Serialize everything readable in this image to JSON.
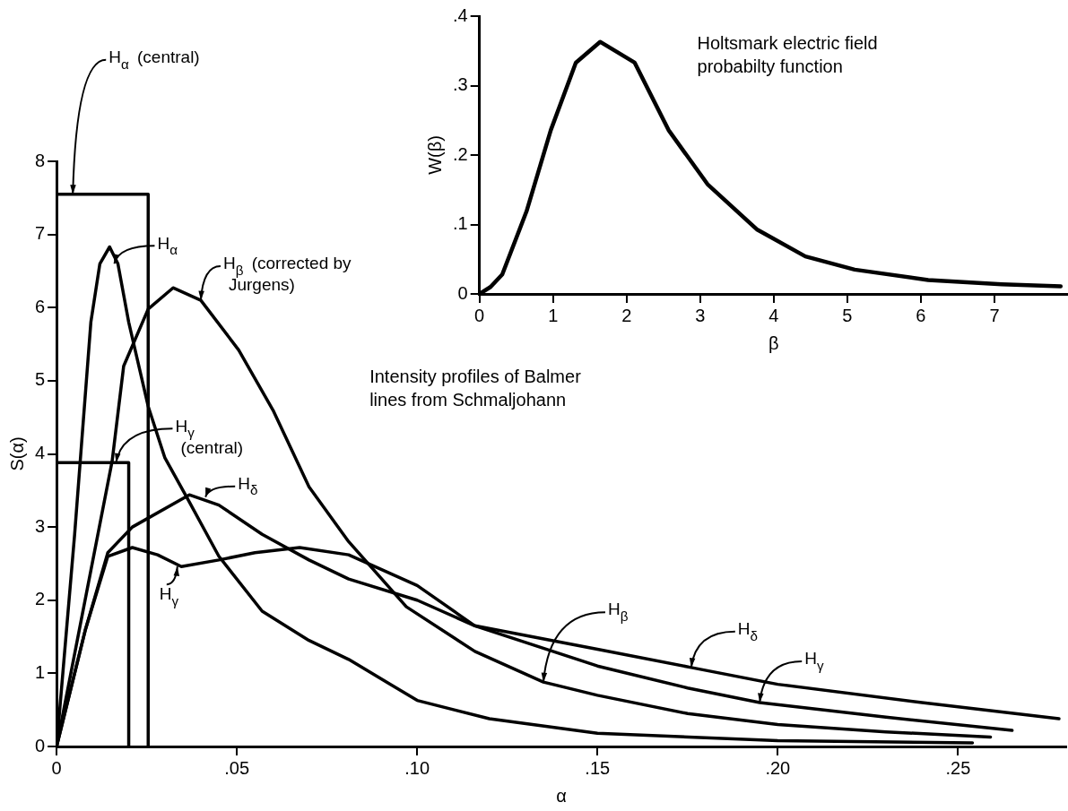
{
  "chart_data": [
    {
      "type": "line",
      "xlabel": "α",
      "ylabel": "S(α)",
      "xlim": [
        0,
        0.28
      ],
      "ylim": [
        0,
        8
      ],
      "xticks": [
        0,
        {
          "value": 0.05,
          "label": ".05"
        },
        {
          "value": 0.1,
          "label": ".10"
        },
        {
          "value": 0.15,
          "label": ".15"
        },
        {
          "value": 0.2,
          "label": ".20"
        },
        {
          "value": 0.25,
          "label": ".25"
        }
      ],
      "yticks": [
        0,
        1,
        2,
        3,
        4,
        5,
        6,
        7,
        8
      ],
      "marker": "none",
      "line_style": "solid",
      "series": [
        {
          "type": "line",
          "color": "#000000",
          "x": [
            0,
            0,
            0.0254,
            0.0254
          ],
          "values": [
            0,
            7.55,
            7.55,
            0
          ]
        },
        {
          "type": "line",
          "color": "#000000",
          "x": [
            0,
            0,
            0.02,
            0.02
          ],
          "values": [
            0,
            3.88,
            3.88,
            0
          ]
        },
        {
          "type": "line",
          "color": "#000000",
          "x": [
            0,
            0.005,
            0.0095,
            0.012,
            0.0147,
            0.017,
            0.02,
            0.0254,
            0.03,
            0.0363,
            0.045,
            0.057,
            0.07,
            0.081,
            0.1,
            0.12,
            0.15,
            0.2,
            0.254
          ],
          "values": [
            0,
            2.9,
            5.8,
            6.6,
            6.83,
            6.6,
            5.8,
            4.65,
            3.95,
            3.39,
            2.6,
            1.85,
            1.45,
            1.19,
            0.63,
            0.38,
            0.18,
            0.08,
            0.05
          ]
        },
        {
          "type": "line",
          "color": "#000000",
          "x": [
            0,
            0.0154,
            0.0186,
            0.0254,
            0.0323,
            0.04,
            0.0505,
            0.06,
            0.07,
            0.081,
            0.097,
            0.116,
            0.135,
            0.15,
            0.175,
            0.2,
            0.23,
            0.259
          ],
          "values": [
            0,
            3.9,
            5.2,
            5.98,
            6.27,
            6.1,
            5.42,
            4.6,
            3.55,
            2.8,
            1.91,
            1.3,
            0.88,
            0.7,
            0.45,
            0.3,
            0.2,
            0.13
          ]
        },
        {
          "type": "line",
          "color": "#000000",
          "x": [
            0,
            0.008,
            0.0142,
            0.021,
            0.028,
            0.0346,
            0.045,
            0.055,
            0.0674,
            0.081,
            0.1,
            0.116,
            0.15,
            0.175,
            0.195,
            0.23,
            0.265
          ],
          "values": [
            0,
            1.6,
            2.6,
            2.72,
            2.62,
            2.46,
            2.55,
            2.65,
            2.72,
            2.62,
            2.2,
            1.65,
            1.1,
            0.8,
            0.6,
            0.4,
            0.22
          ]
        },
        {
          "type": "line",
          "color": "#000000",
          "x": [
            0,
            0.008,
            0.0142,
            0.021,
            0.0368,
            0.045,
            0.057,
            0.07,
            0.081,
            0.1,
            0.116,
            0.15,
            0.176,
            0.2,
            0.24,
            0.278
          ],
          "values": [
            0,
            1.6,
            2.65,
            3.0,
            3.44,
            3.3,
            2.9,
            2.55,
            2.29,
            2.0,
            1.65,
            1.33,
            1.08,
            0.85,
            0.6,
            0.38
          ]
        }
      ],
      "annotations": [
        {
          "text": "H$_{α}$ (central)",
          "x": 0.0045,
          "y": 7.55
        },
        {
          "text": "H$_{α}$",
          "x": 0.016,
          "y": 6.6
        },
        {
          "text": "H$_{β}$ (corrected by Jurgens)",
          "x": 0.04,
          "y": 6.1
        },
        {
          "text": "H$_{γ}$ (central)",
          "x": 0.0165,
          "y": 3.88
        },
        {
          "text": "H$_{δ}$",
          "x": 0.0413,
          "y": 3.41
        },
        {
          "text": "H$_{γ}$",
          "x": 0.0335,
          "y": 2.46
        },
        {
          "text": "H$_{β}$",
          "x": 0.135,
          "y": 0.88
        },
        {
          "text": "H$_{δ}$",
          "x": 0.176,
          "y": 1.08
        },
        {
          "text": "H$_{γ}$",
          "x": 0.195,
          "y": 0.6
        },
        "Intensity profiles of Balmer lines from Schmaljohann"
      ]
    },
    {
      "type": "line",
      "xlabel": "β",
      "ylabel": "W(β)",
      "xlim": [
        0,
        8
      ],
      "ylim": [
        0,
        0.4
      ],
      "xticks": [
        0,
        1,
        2,
        3,
        4,
        5,
        6,
        7
      ],
      "yticks": [
        0,
        {
          "value": 0.1,
          "label": ".1"
        },
        {
          "value": 0.2,
          "label": ".2"
        },
        {
          "value": 0.3,
          "label": ".3"
        },
        {
          "value": 0.4,
          "label": ".4"
        }
      ],
      "marker": "none",
      "line_style": "solid",
      "series": [
        {
          "type": "line",
          "color": "#000000",
          "x": [
            0,
            0.15,
            0.31,
            0.64,
            0.97,
            1.31,
            1.64,
            2.11,
            2.57,
            3.1,
            3.77,
            4.43,
            5.1,
            6.1,
            7.1,
            7.9
          ],
          "values": [
            0,
            0.01,
            0.028,
            0.119,
            0.236,
            0.333,
            0.363,
            0.333,
            0.236,
            0.158,
            0.093,
            0.054,
            0.035,
            0.02,
            0.014,
            0.011
          ]
        }
      ],
      "annotations": [
        "Holtsmark electric field probabilty function"
      ]
    }
  ]
}
